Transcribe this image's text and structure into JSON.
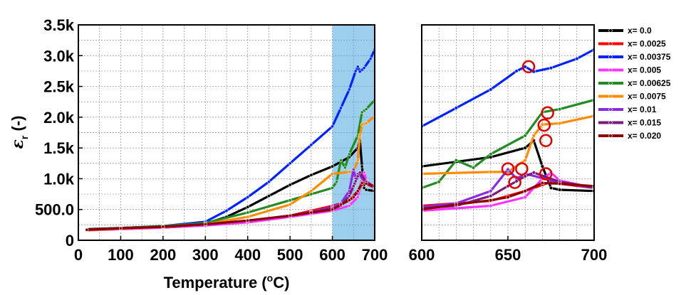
{
  "chart_data": [
    {
      "type": "line",
      "panel": "full range",
      "xlabel_base": "Temperature (",
      "xlabel_sup": "o",
      "xlabel_end": "C)",
      "ylabel_main": "ε",
      "ylabel_sub": "r",
      "ylabel_unit": " (-)",
      "xlim": [
        0,
        700
      ],
      "ylim": [
        0,
        3500
      ],
      "x_ticks": [
        "0",
        "100",
        "200",
        "300",
        "400",
        "500",
        "600",
        "700"
      ],
      "y_ticks": [
        "0",
        "500.0",
        "1.0k",
        "1.5k",
        "2.0k",
        "2.5k",
        "3.0k",
        "3.5k"
      ],
      "grid": true,
      "highlight_region_x": [
        600,
        700
      ],
      "series": [
        {
          "name": "x= 0.0",
          "color": "#000000",
          "x": [
            20,
            100,
            200,
            300,
            350,
            400,
            450,
            500,
            550,
            600,
            640,
            660,
            665,
            670,
            675,
            680,
            700
          ],
          "y": [
            180,
            200,
            225,
            270,
            380,
            540,
            720,
            900,
            1060,
            1200,
            1350,
            1500,
            1620,
            1200,
            850,
            820,
            800
          ]
        },
        {
          "name": "x= 0.0025",
          "color": "#ff0000",
          "x": [
            20,
            100,
            200,
            300,
            400,
            500,
            550,
            600,
            640,
            660,
            670,
            675,
            680,
            700
          ],
          "y": [
            170,
            190,
            210,
            240,
            300,
            400,
            480,
            560,
            640,
            800,
            900,
            950,
            920,
            850
          ]
        },
        {
          "name": "x= 0.00375",
          "color": "#0022ff",
          "x": [
            20,
            100,
            200,
            300,
            350,
            400,
            450,
            500,
            550,
            600,
            620,
            640,
            655,
            660,
            665,
            675,
            690,
            700
          ],
          "y": [
            170,
            200,
            230,
            300,
            480,
            700,
            950,
            1250,
            1550,
            1850,
            2150,
            2450,
            2750,
            2820,
            2740,
            2800,
            2950,
            3100
          ]
        },
        {
          "name": "x= 0.005",
          "color": "#ff33ff",
          "x": [
            20,
            100,
            200,
            300,
            400,
            500,
            550,
            600,
            640,
            660,
            670,
            675,
            680,
            700
          ],
          "y": [
            160,
            180,
            205,
            240,
            290,
            380,
            430,
            480,
            560,
            700,
            1000,
            1100,
            970,
            850
          ]
        },
        {
          "name": "x= 0.00625",
          "color": "#228b22",
          "x": [
            20,
            100,
            200,
            300,
            400,
            500,
            550,
            600,
            610,
            620,
            630,
            640,
            660,
            670,
            680,
            700
          ],
          "y": [
            170,
            200,
            230,
            280,
            450,
            650,
            750,
            850,
            950,
            1300,
            1180,
            1400,
            1700,
            2080,
            2130,
            2280
          ]
        },
        {
          "name": "x= 0.0075",
          "color": "#ff8c00",
          "x": [
            20,
            100,
            200,
            300,
            400,
            500,
            550,
            600,
            640,
            650,
            660,
            665,
            670,
            680,
            700
          ],
          "y": [
            160,
            190,
            215,
            260,
            380,
            580,
            800,
            1080,
            1110,
            1110,
            1300,
            1700,
            1880,
            1900,
            2020
          ]
        },
        {
          "name": "x= 0.01",
          "color": "#8a2be2",
          "x": [
            20,
            100,
            200,
            300,
            400,
            500,
            550,
            600,
            620,
            640,
            650,
            655,
            660,
            680,
            700
          ],
          "y": [
            170,
            195,
            220,
            260,
            320,
            400,
            460,
            540,
            600,
            800,
            1150,
            1000,
            1080,
            940,
            850
          ]
        },
        {
          "name": "x= 0.015",
          "color": "#7b1a7b",
          "x": [
            20,
            100,
            200,
            300,
            400,
            500,
            550,
            600,
            620,
            640,
            650,
            655,
            660,
            665,
            680,
            700
          ],
          "y": [
            170,
            195,
            220,
            260,
            320,
            400,
            450,
            520,
            560,
            720,
            880,
            960,
            1040,
            1100,
            950,
            860
          ]
        },
        {
          "name": "x= 0.020",
          "color": "#8b0000",
          "x": [
            20,
            100,
            200,
            300,
            400,
            500,
            550,
            600,
            620,
            640,
            650,
            660,
            670,
            680,
            700
          ],
          "y": [
            170,
            195,
            220,
            260,
            320,
            400,
            450,
            500,
            580,
            650,
            700,
            800,
            930,
            920,
            880
          ]
        }
      ]
    },
    {
      "type": "line",
      "panel": "zoomed 600-700",
      "xlim": [
        600,
        700
      ],
      "ylim": [
        0,
        3500
      ],
      "x_ticks": [
        "600",
        "650",
        "700"
      ],
      "grid": true,
      "annotations": "red circles mark permittivity peaks",
      "peak_markers": [
        {
          "x": 662,
          "y": 2820
        },
        {
          "x": 673,
          "y": 2070
        },
        {
          "x": 671,
          "y": 1870
        },
        {
          "x": 672,
          "y": 1620
        },
        {
          "x": 650,
          "y": 1160
        },
        {
          "x": 658,
          "y": 1160
        },
        {
          "x": 672,
          "y": 1080
        },
        {
          "x": 654,
          "y": 940
        }
      ],
      "legend_position": "right",
      "series_ref": "same series as full range panel"
    }
  ]
}
